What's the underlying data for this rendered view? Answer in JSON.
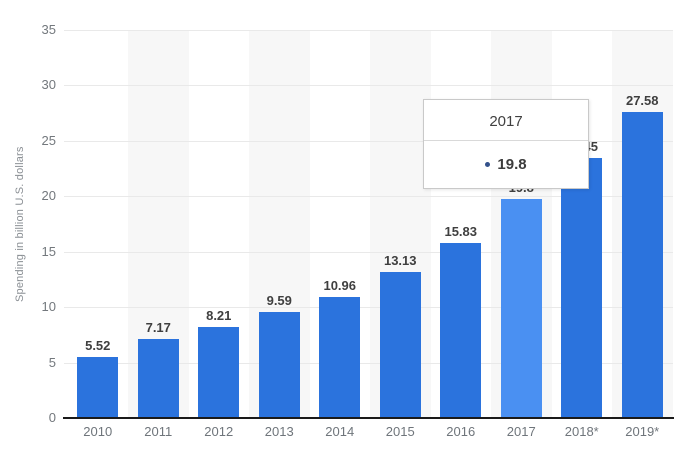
{
  "chart_data": {
    "type": "bar",
    "title": "",
    "xlabel": "",
    "ylabel": "Spending in billion U.S. dollars",
    "categories": [
      "2010",
      "2011",
      "2012",
      "2013",
      "2014",
      "2015",
      "2016",
      "2017",
      "2018*",
      "2019*"
    ],
    "values": [
      5.52,
      7.17,
      8.21,
      9.59,
      10.96,
      13.13,
      15.83,
      19.8,
      23.45,
      27.58
    ],
    "value_labels": [
      "5.52",
      "7.17",
      "8.21",
      "9.59",
      "10.96",
      "13.13",
      "15.83",
      "19.8",
      "23.45",
      "27.58"
    ],
    "ylim": [
      0,
      35
    ],
    "yticks": [
      0,
      5,
      10,
      15,
      20,
      25,
      30,
      35
    ],
    "grid": true,
    "legend_position": "none",
    "highlighted_category": "2017"
  },
  "tooltip": {
    "title": "2017",
    "value": "19.8"
  },
  "colors": {
    "bar": "#2b73dd",
    "bar_highlight": "#4a90f2",
    "column_band": "#f7f7f7",
    "gridline": "#e9e9e9",
    "axis_line": "#1a1a1a",
    "tick_label": "#73787d",
    "value_label": "#3f3f3f",
    "tooltip_border": "#c9c9c9",
    "tooltip_marker": "#33518b"
  }
}
